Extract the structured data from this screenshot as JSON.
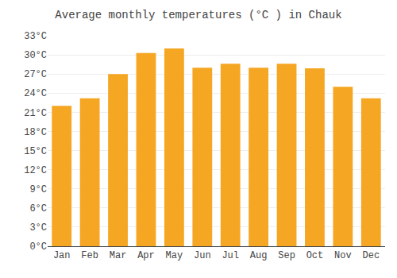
{
  "chart_data": {
    "type": "bar",
    "title": "Average monthly temperatures (°C ) in Chauk",
    "categories": [
      "Jan",
      "Feb",
      "Mar",
      "Apr",
      "May",
      "Jun",
      "Jul",
      "Aug",
      "Sep",
      "Oct",
      "Nov",
      "Dec"
    ],
    "values": [
      22.0,
      23.2,
      27.0,
      30.3,
      31.0,
      28.0,
      28.6,
      28.0,
      28.6,
      27.9,
      25.0,
      23.2
    ],
    "color": "#F5A623",
    "ylim": [
      0,
      33
    ],
    "yticks": [
      {
        "value": 0,
        "label": "0°C"
      },
      {
        "value": 3,
        "label": "3°C"
      },
      {
        "value": 6,
        "label": "6°C"
      },
      {
        "value": 9,
        "label": "9°C"
      },
      {
        "value": 12,
        "label": "12°C"
      },
      {
        "value": 15,
        "label": "15°C"
      },
      {
        "value": 18,
        "label": "18°C"
      },
      {
        "value": 21,
        "label": "21°C"
      },
      {
        "value": 24,
        "label": "24°C"
      },
      {
        "value": 27,
        "label": "27°C"
      },
      {
        "value": 30,
        "label": "30°C"
      },
      {
        "value": 33,
        "label": "33°C"
      }
    ],
    "grid": true
  }
}
